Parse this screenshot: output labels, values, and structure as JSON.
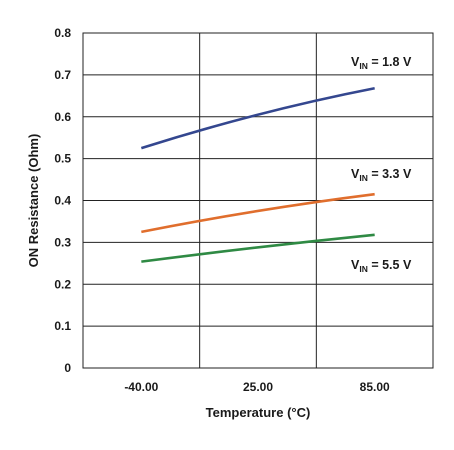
{
  "chart_data": {
    "type": "line",
    "title": "",
    "xlabel": "Temperature (°C)",
    "ylabel": "ON Resistance (Ohm)",
    "categories": [
      "-40.00",
      "25.00",
      "85.00"
    ],
    "x": [
      -40,
      25,
      85
    ],
    "ylim": [
      0,
      0.8
    ],
    "yticks": [
      "0",
      "0.1",
      "0.2",
      "0.3",
      "0.4",
      "0.5",
      "0.6",
      "0.7",
      "0.8"
    ],
    "grid": true,
    "series": [
      {
        "name": "V_IN = 1.8 V",
        "color": "#34478f",
        "values": [
          0.525,
          0.605,
          0.668
        ],
        "label": {
          "prefix": "V",
          "sub": "IN",
          "suffix": " = 1.8 V"
        }
      },
      {
        "name": "V_IN = 3.3 V",
        "color": "#e06e2d",
        "values": [
          0.325,
          0.375,
          0.415
        ],
        "label": {
          "prefix": "V",
          "sub": "IN",
          "suffix": " = 3.3 V"
        }
      },
      {
        "name": "V_IN = 5.5 V",
        "color": "#2f8a44",
        "values": [
          0.254,
          0.288,
          0.318
        ],
        "label": {
          "prefix": "V",
          "sub": "IN",
          "suffix": " = 5.5 V"
        }
      }
    ]
  }
}
